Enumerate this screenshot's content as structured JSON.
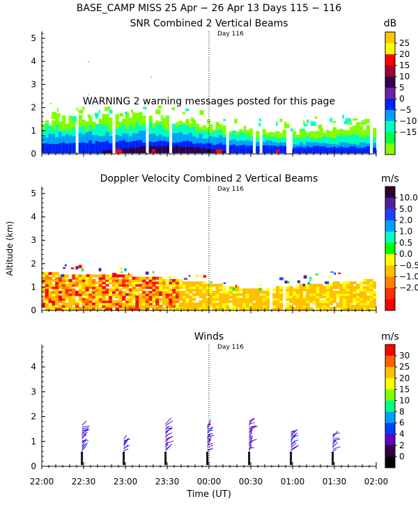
{
  "header": {
    "title": "BASE_CAMP MISS  25 Apr − 26 Apr 13 Days 115 − 116"
  },
  "warning_text": "WARNING  2 warning messages posted for this page",
  "x_axis": {
    "label": "Time (UT)",
    "ticks": [
      "22:00",
      "22:30",
      "23:00",
      "23:30",
      "00:00",
      "00:30",
      "01:00",
      "01:30",
      "02:00"
    ],
    "range_hours": [
      22,
      26
    ]
  },
  "chart_data": [
    {
      "id": "snr",
      "type": "heatmap",
      "title": "SNR Combined 2 Vertical Beams",
      "day_label": "Day 116",
      "day_marker_hour": 24,
      "ylim": [
        0,
        5.3
      ],
      "yticks": [
        "0",
        "1",
        "2",
        "3",
        "4",
        "5"
      ],
      "ylabel": "",
      "colorbar": {
        "unit": "dB",
        "labels": [
          "25",
          "20",
          "15",
          "10",
          "5",
          "0",
          "−5",
          "−10",
          "−15"
        ],
        "colors": [
          "#ffc800",
          "#ffff00",
          "#ff0000",
          "#a00030",
          "#300050",
          "#7020a0",
          "#0020ff",
          "#00a0ff",
          "#00ffc0",
          "#00ff40",
          "#80ff00"
        ]
      },
      "profile": [
        {
          "t": 22.0,
          "layers": [
            0.45,
            0.8,
            1.15,
            1.4
          ]
        },
        {
          "t": 22.5,
          "layers": [
            0.5,
            0.85,
            1.1,
            1.5
          ]
        },
        {
          "t": 23.0,
          "layers": [
            0.55,
            0.9,
            1.2,
            1.6
          ]
        },
        {
          "t": 23.5,
          "layers": [
            0.55,
            0.85,
            1.2,
            1.55
          ]
        },
        {
          "t": 24.0,
          "layers": [
            0.45,
            0.75,
            1.0,
            1.25
          ]
        },
        {
          "t": 24.5,
          "layers": [
            0.35,
            0.55,
            0.8,
            1.0
          ]
        },
        {
          "t": 25.0,
          "layers": [
            0.3,
            0.45,
            0.7,
            0.95
          ]
        },
        {
          "t": 25.5,
          "layers": [
            0.3,
            0.45,
            0.75,
            1.1
          ]
        },
        {
          "t": 26.0,
          "layers": [
            0.3,
            0.45,
            0.8,
            1.2
          ]
        }
      ]
    },
    {
      "id": "doppler",
      "type": "heatmap",
      "title": "Doppler Velocity Combined 2 Vertical Beams",
      "day_label": "Day 116",
      "day_marker_hour": 24,
      "ylim": [
        0,
        5.3
      ],
      "yticks": [
        "0",
        "1",
        "2",
        "3",
        "4",
        "5"
      ],
      "ylabel": "Altitude (km)",
      "colorbar": {
        "unit": "m/s",
        "labels": [
          "10.0",
          "5.0",
          "2.0",
          "1.0",
          "0.5",
          "0.0",
          "−0.5",
          "−1.0",
          "−2.0"
        ],
        "colors": [
          "#300030",
          "#5020a0",
          "#2040ff",
          "#00a0ff",
          "#00ffc0",
          "#00ff00",
          "#ffff00",
          "#ffc000",
          "#ff8000",
          "#ff3000",
          "#ff0000"
        ]
      },
      "profile": [
        {
          "t": 22.0,
          "top": 1.55
        },
        {
          "t": 22.5,
          "top": 1.5
        },
        {
          "t": 23.0,
          "top": 1.45
        },
        {
          "t": 23.5,
          "top": 1.3
        },
        {
          "t": 24.0,
          "top": 1.1
        },
        {
          "t": 24.5,
          "top": 0.85
        },
        {
          "t": 25.0,
          "top": 1.0
        },
        {
          "t": 25.5,
          "top": 1.2
        },
        {
          "t": 26.0,
          "top": 1.25
        }
      ]
    },
    {
      "id": "winds",
      "type": "scatter",
      "title": "Winds",
      "day_label": "Day 116",
      "day_marker_hour": 24,
      "ylim": [
        0,
        4.9
      ],
      "yticks": [
        "0",
        "1",
        "2",
        "3",
        "4"
      ],
      "ylabel": "",
      "colorbar": {
        "unit": "m/s",
        "labels": [
          "30",
          "25",
          "20",
          "15",
          "10",
          "8",
          "6",
          "4",
          "2",
          "0"
        ],
        "colors": [
          "#ff0000",
          "#ff6000",
          "#ffc000",
          "#ffff00",
          "#80ff00",
          "#00ff80",
          "#00a0ff",
          "#0040ff",
          "#6000c0",
          "#300040",
          "#000000"
        ]
      },
      "profiles": [
        {
          "t": 22.48,
          "top": 1.6
        },
        {
          "t": 22.98,
          "top": 1.1
        },
        {
          "t": 23.48,
          "top": 1.7
        },
        {
          "t": 23.98,
          "top": 1.6
        },
        {
          "t": 24.48,
          "top": 1.8
        },
        {
          "t": 24.98,
          "top": 1.35
        },
        {
          "t": 25.48,
          "top": 1.25
        }
      ]
    }
  ]
}
